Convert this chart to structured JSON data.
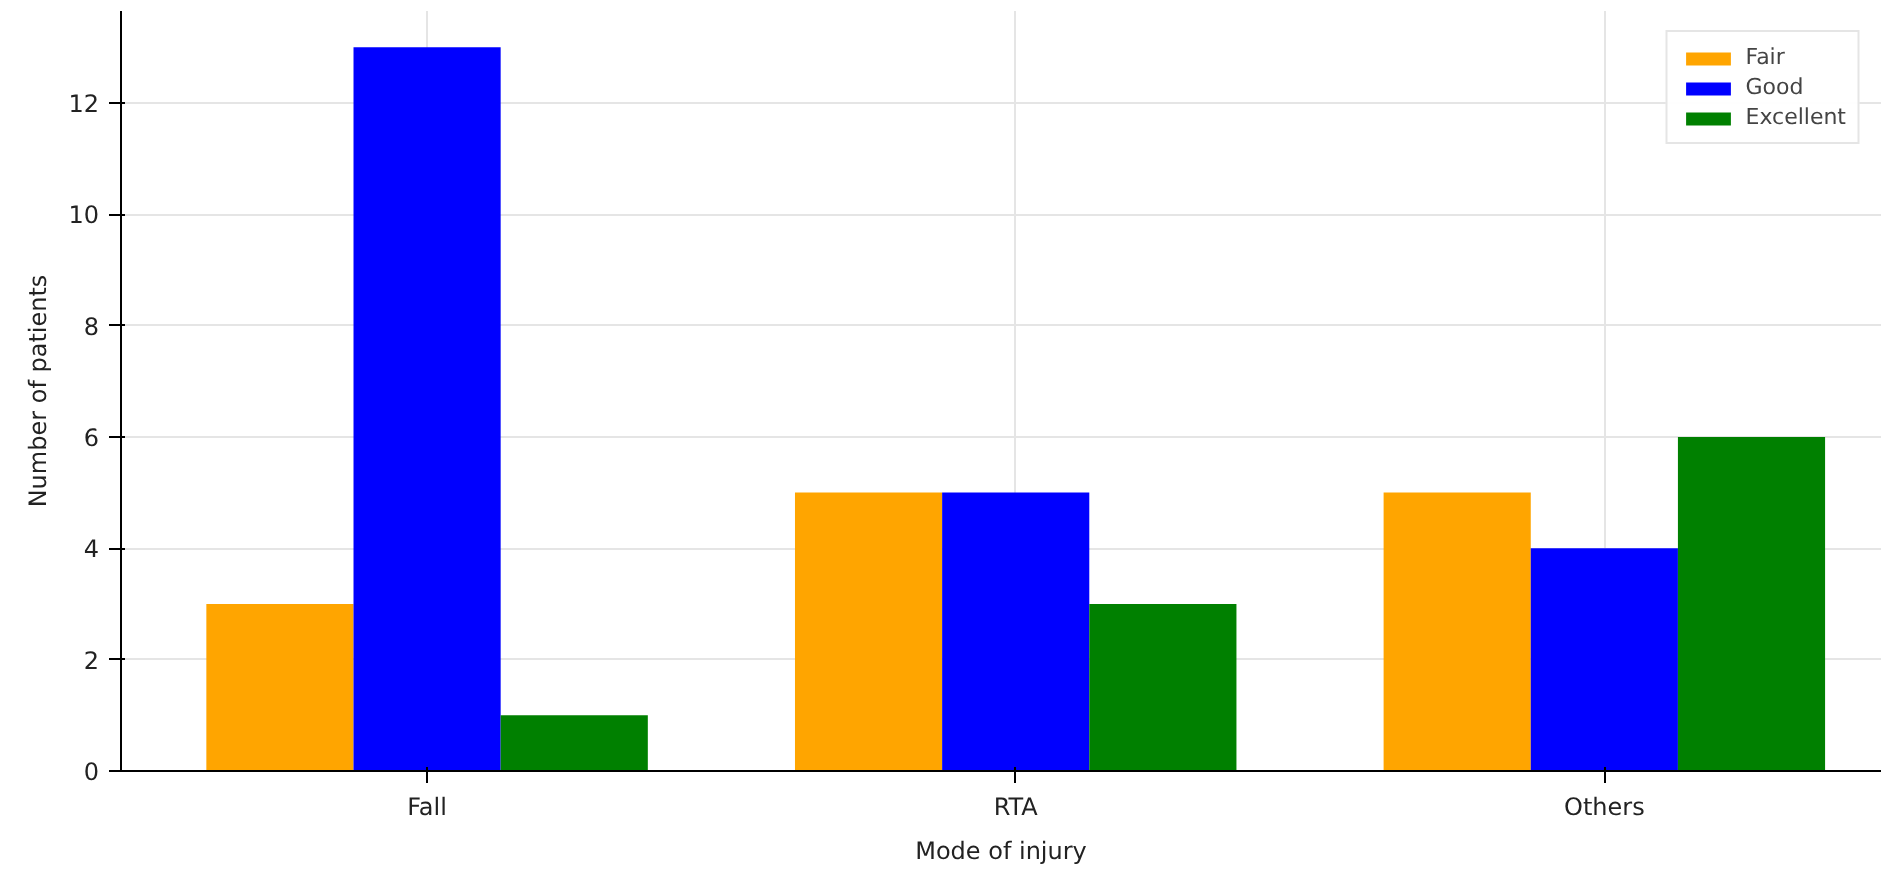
{
  "chart_data": {
    "type": "bar",
    "xlabel": "Mode of injury",
    "ylabel": "Number of patients",
    "categories": [
      "Fall",
      "RTA",
      "Others"
    ],
    "series": [
      {
        "name": "Fair",
        "color": "#ffa500",
        "values": [
          3,
          5,
          5
        ]
      },
      {
        "name": "Good",
        "color": "#0000ff",
        "values": [
          13,
          5,
          4
        ]
      },
      {
        "name": "Excellent",
        "color": "#008000",
        "values": [
          1,
          3,
          6
        ]
      }
    ],
    "ylim": [
      0,
      13.65
    ],
    "yticks": [
      0,
      2,
      4,
      6,
      8,
      10,
      12
    ],
    "grid": true,
    "legend": "top right"
  }
}
